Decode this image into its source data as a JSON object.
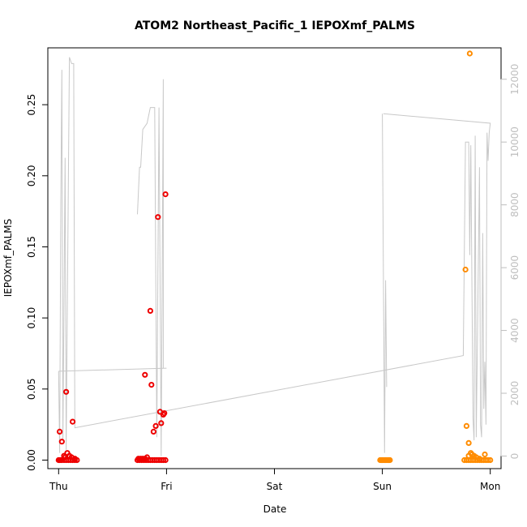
{
  "chart_data": {
    "type": "scatter",
    "title": "ATOM2 Northeast_Pacific_1 IEPOXmf_PALMS",
    "xlabel": "Date",
    "ylabel": "IEPOXmf_PALMS",
    "xlim": [
      -0.1,
      4.1
    ],
    "ylim": [
      -0.006,
      0.29
    ],
    "x_ticks": [
      {
        "value": 0,
        "label": "Thu"
      },
      {
        "value": 1,
        "label": "Fri"
      },
      {
        "value": 2,
        "label": "Sat"
      },
      {
        "value": 3,
        "label": "Sun"
      },
      {
        "value": 4,
        "label": "Mon"
      }
    ],
    "y_ticks": [
      {
        "value": 0.0,
        "label": "0.00"
      },
      {
        "value": 0.05,
        "label": "0.05"
      },
      {
        "value": 0.1,
        "label": "0.10"
      },
      {
        "value": 0.15,
        "label": "0.15"
      },
      {
        "value": 0.2,
        "label": "0.20"
      },
      {
        "value": 0.25,
        "label": "0.25"
      }
    ],
    "y2lim": [
      -400,
      13000
    ],
    "y2_ticks": [
      {
        "value": 0,
        "label": "0"
      },
      {
        "value": 2000,
        "label": "2000"
      },
      {
        "value": 4000,
        "label": "4000"
      },
      {
        "value": 6000,
        "label": "6000"
      },
      {
        "value": 8000,
        "label": "8000"
      },
      {
        "value": 10000,
        "label": "10000"
      },
      {
        "value": 12000,
        "label": "12000"
      }
    ],
    "colors": {
      "series_red": "#ee0000",
      "series_orange": "#ff8c00",
      "altitude_line": "#c8c8c8",
      "right_axis": "#bebebe"
    },
    "series": [
      {
        "color": "#ee0000",
        "points": [
          [
            0.0,
            0.0
          ],
          [
            0.01,
            0.0
          ],
          [
            0.02,
            0.0
          ],
          [
            0.03,
            0.0
          ],
          [
            0.05,
            0.0
          ],
          [
            0.07,
            0.0
          ],
          [
            0.09,
            0.0
          ],
          [
            0.11,
            0.0
          ],
          [
            0.13,
            0.0
          ],
          [
            0.15,
            0.0
          ],
          [
            0.17,
            0.0
          ],
          [
            0.01,
            0.02
          ],
          [
            0.03,
            0.013
          ],
          [
            0.05,
            0.003
          ],
          [
            0.07,
            0.048
          ],
          [
            0.08,
            0.005
          ],
          [
            0.1,
            0.003
          ],
          [
            0.12,
            0.002
          ],
          [
            0.13,
            0.027
          ],
          [
            0.15,
            0.001
          ],
          [
            0.06,
            0.002
          ],
          [
            0.73,
            0.0
          ],
          [
            0.75,
            0.0
          ],
          [
            0.77,
            0.0
          ],
          [
            0.79,
            0.0
          ],
          [
            0.81,
            0.0
          ],
          [
            0.83,
            0.0
          ],
          [
            0.85,
            0.0
          ],
          [
            0.87,
            0.0
          ],
          [
            0.89,
            0.0
          ],
          [
            0.91,
            0.0
          ],
          [
            0.93,
            0.0
          ],
          [
            0.95,
            0.0
          ],
          [
            0.97,
            0.0
          ],
          [
            0.99,
            0.0
          ],
          [
            0.74,
            0.001
          ],
          [
            0.76,
            0.001
          ],
          [
            0.78,
            0.001
          ],
          [
            0.8,
            0.001
          ],
          [
            0.82,
            0.002
          ],
          [
            0.8,
            0.06
          ],
          [
            0.86,
            0.053
          ],
          [
            0.85,
            0.105
          ],
          [
            0.88,
            0.02
          ],
          [
            0.9,
            0.024
          ],
          [
            0.92,
            0.171
          ],
          [
            0.94,
            0.034
          ],
          [
            0.95,
            0.026
          ],
          [
            0.98,
            0.033
          ],
          [
            0.99,
            0.187
          ],
          [
            0.97,
            0.032
          ]
        ]
      },
      {
        "color": "#ff8c00",
        "points": [
          [
            2.98,
            0.0
          ],
          [
            2.99,
            0.0
          ],
          [
            3.0,
            0.0
          ],
          [
            3.01,
            0.0
          ],
          [
            3.02,
            0.0
          ],
          [
            3.03,
            0.0
          ],
          [
            3.04,
            0.0
          ],
          [
            3.05,
            0.0
          ],
          [
            3.06,
            0.0
          ],
          [
            3.07,
            0.0
          ],
          [
            3.76,
            0.0
          ],
          [
            3.78,
            0.0
          ],
          [
            3.8,
            0.0
          ],
          [
            3.82,
            0.0
          ],
          [
            3.84,
            0.0
          ],
          [
            3.86,
            0.0
          ],
          [
            3.88,
            0.0
          ],
          [
            3.9,
            0.0
          ],
          [
            3.92,
            0.0
          ],
          [
            3.94,
            0.0
          ],
          [
            3.96,
            0.0
          ],
          [
            3.98,
            0.0
          ],
          [
            4.0,
            0.0
          ],
          [
            3.77,
            0.134
          ],
          [
            3.78,
            0.024
          ],
          [
            3.8,
            0.012
          ],
          [
            3.8,
            0.003
          ],
          [
            3.82,
            0.005
          ],
          [
            3.81,
            0.286
          ],
          [
            3.83,
            0.004
          ],
          [
            3.85,
            0.003
          ],
          [
            3.87,
            0.002
          ],
          [
            3.9,
            0.001
          ],
          [
            3.95,
            0.004
          ]
        ]
      }
    ],
    "altitude_segments": [
      [
        [
          0.0,
          2700
        ],
        [
          0.01,
          100
        ],
        [
          0.02,
          8000
        ],
        [
          0.03,
          12300
        ],
        [
          0.04,
          500
        ],
        [
          0.06,
          9500
        ],
        [
          0.07,
          200
        ],
        [
          0.1,
          12700
        ],
        [
          0.12,
          12500
        ],
        [
          0.14,
          12500
        ],
        [
          0.15,
          900
        ],
        [
          0.15,
          900
        ],
        [
          3.75,
          3200
        ],
        [
          3.77,
          10000
        ],
        [
          3.8,
          10000
        ],
        [
          3.81,
          6400
        ],
        [
          3.82,
          9900
        ],
        [
          3.84,
          1200
        ],
        [
          3.85,
          500
        ],
        [
          3.86,
          10200
        ],
        [
          3.87,
          600
        ],
        [
          3.9,
          9200
        ],
        [
          3.91,
          1000
        ],
        [
          3.92,
          600
        ],
        [
          3.93,
          7100
        ],
        [
          3.94,
          1500
        ],
        [
          3.95,
          3000
        ],
        [
          3.96,
          1000
        ],
        [
          3.97,
          10300
        ],
        [
          3.98,
          9400
        ],
        [
          3.99,
          10300
        ],
        [
          4.0,
          10600
        ],
        [
          3.01,
          10900
        ],
        [
          3.02,
          10900
        ]
      ],
      [
        [
          0.0,
          2700
        ],
        [
          1.0,
          2800
        ]
      ],
      [
        [
          0.73,
          7700
        ],
        [
          0.75,
          9200
        ],
        [
          0.76,
          9200
        ],
        [
          0.78,
          10400
        ],
        [
          0.82,
          10600
        ],
        [
          0.85,
          11100
        ],
        [
          0.89,
          11100
        ],
        [
          0.91,
          600
        ],
        [
          0.93,
          11100
        ],
        [
          0.95,
          0
        ],
        [
          0.97,
          12000
        ],
        [
          0.97,
          2800
        ]
      ],
      [
        [
          3.0,
          10900
        ],
        [
          3.02,
          100
        ],
        [
          3.03,
          5600
        ],
        [
          3.04,
          2200
        ]
      ]
    ]
  }
}
